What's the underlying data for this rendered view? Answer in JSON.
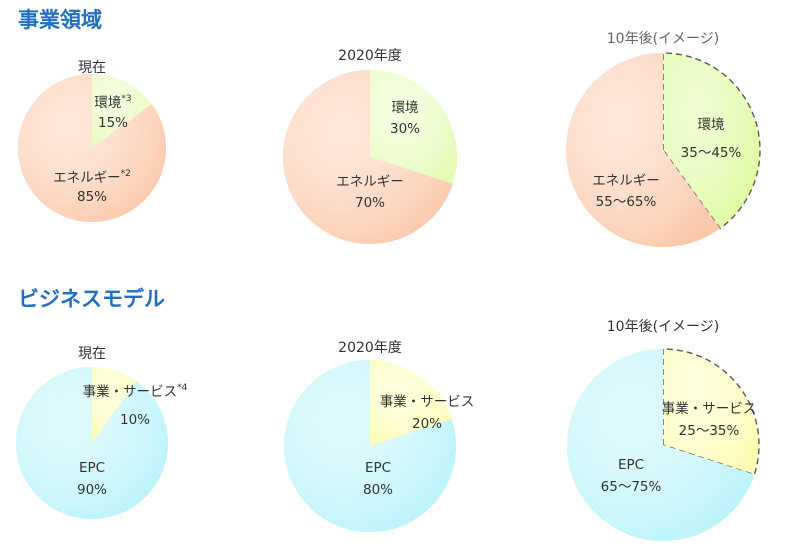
{
  "sections": [
    {
      "title": "事業領域"
    },
    {
      "title": "ビジネスモデル"
    }
  ],
  "chart_data": [
    {
      "type": "pie",
      "title": "現在",
      "slices": [
        {
          "label": "環境",
          "footnote": "*3",
          "value_text": "15%",
          "value": 15,
          "color": "#e6fbb8"
        },
        {
          "label": "エネルギー",
          "footnote": "*2",
          "value_text": "85%",
          "value": 85,
          "color": "#fbc8aa"
        }
      ]
    },
    {
      "type": "pie",
      "title": "2020年度",
      "slices": [
        {
          "label": "環境",
          "value_text": "30%",
          "value": 30,
          "color": "#e6fbb8"
        },
        {
          "label": "エネルギー",
          "value_text": "70%",
          "value": 70,
          "color": "#fbc8aa"
        }
      ]
    },
    {
      "type": "pie",
      "title": "10年後(イメージ)",
      "title_muted": true,
      "dashed_slice": 0,
      "slices": [
        {
          "label": "環境",
          "value_text": "35～45%",
          "value": 40,
          "color": "#dcfa9a"
        },
        {
          "label": "エネルギー",
          "value_text": "55～65%",
          "value": 60,
          "color": "#fbc8aa"
        }
      ]
    },
    {
      "type": "pie",
      "title": "現在",
      "slices": [
        {
          "label": "事業・サービス",
          "footnote": "*4",
          "value_text": "10%",
          "value": 10,
          "color": "#fcfcb4"
        },
        {
          "label": "EPC",
          "value_text": "90%",
          "value": 90,
          "color": "#b8f3fa"
        }
      ]
    },
    {
      "type": "pie",
      "title": "2020年度",
      "slices": [
        {
          "label": "事業・サービス",
          "value_text": "20%",
          "value": 20,
          "color": "#fcfcb4"
        },
        {
          "label": "EPC",
          "value_text": "80%",
          "value": 80,
          "color": "#b8f3fa"
        }
      ]
    },
    {
      "type": "pie",
      "title": "10年後(イメージ)",
      "dashed_slice": 0,
      "slices": [
        {
          "label": "事業・サービス",
          "value_text": "25～35%",
          "value": 30,
          "color": "#fcfcb4"
        },
        {
          "label": "EPC",
          "value_text": "65～75%",
          "value": 70,
          "color": "#b8f3fa"
        }
      ]
    }
  ]
}
